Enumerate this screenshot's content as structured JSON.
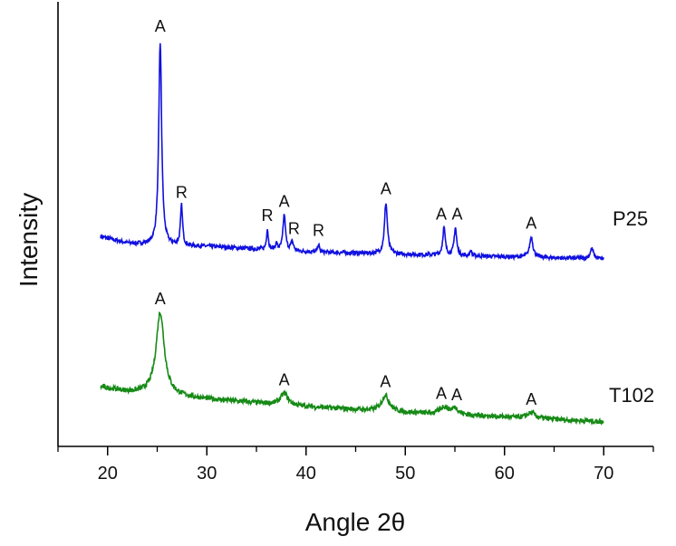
{
  "chart_data": {
    "type": "line",
    "title": "",
    "xlabel": "Angle 2θ",
    "ylabel": "Intensity",
    "xlim": [
      15,
      75
    ],
    "ylim": [
      0,
      100
    ],
    "x_ticks": [
      20,
      30,
      40,
      50,
      60,
      70
    ],
    "x_minor_ticks": [
      15,
      25,
      35,
      45,
      55,
      65,
      75
    ],
    "y_ticks": [],
    "grid": false,
    "series": [
      {
        "name": "P25",
        "color": "#1010e0",
        "x_range": [
          19.3,
          70
        ],
        "baseline": [
          [
            19.3,
            47
          ],
          [
            22,
            45.5
          ],
          [
            25,
            45
          ],
          [
            30,
            44.8
          ],
          [
            40,
            43.6
          ],
          [
            50,
            43
          ],
          [
            60,
            42.5
          ],
          [
            70,
            42
          ]
        ],
        "peaks": [
          {
            "x": 25.3,
            "height": 45.5,
            "fwhm": 0.35,
            "label": "A"
          },
          {
            "x": 27.45,
            "height": 9,
            "fwhm": 0.25,
            "label": "R"
          },
          {
            "x": 36.1,
            "height": 4.6,
            "fwhm": 0.22,
            "label": "R"
          },
          {
            "x": 37.0,
            "height": 1.3,
            "fwhm": 0.25,
            "label": ""
          },
          {
            "x": 37.8,
            "height": 8,
            "fwhm": 0.3,
            "label": "A"
          },
          {
            "x": 38.6,
            "height": 2,
            "fwhm": 0.3,
            "label": "R"
          },
          {
            "x": 41.25,
            "height": 1.8,
            "fwhm": 0.2,
            "label": "R"
          },
          {
            "x": 48.05,
            "height": 11.5,
            "fwhm": 0.35,
            "label": "A"
          },
          {
            "x": 53.9,
            "height": 6.2,
            "fwhm": 0.3,
            "label": "A"
          },
          {
            "x": 55.05,
            "height": 6.2,
            "fwhm": 0.3,
            "label": "A"
          },
          {
            "x": 56.6,
            "height": 1.2,
            "fwhm": 0.2,
            "label": ""
          },
          {
            "x": 62.7,
            "height": 4.6,
            "fwhm": 0.4,
            "label": "A"
          },
          {
            "x": 68.8,
            "height": 2.2,
            "fwhm": 0.4,
            "label": ""
          }
        ]
      },
      {
        "name": "T102",
        "color": "#168a16",
        "x_range": [
          19.3,
          70
        ],
        "baseline": [
          [
            19.3,
            13.3
          ],
          [
            22,
            12.2
          ],
          [
            30,
            10.6
          ],
          [
            40,
            8.9
          ],
          [
            50,
            7.6
          ],
          [
            60,
            6.6
          ],
          [
            70,
            5.5
          ]
        ],
        "peaks": [
          {
            "x": 25.3,
            "height": 18.5,
            "fwhm": 1.0,
            "label": "A"
          },
          {
            "x": 37.8,
            "height": 2.6,
            "fwhm": 0.9,
            "label": "A"
          },
          {
            "x": 48.0,
            "height": 3.6,
            "fwhm": 0.9,
            "label": "A"
          },
          {
            "x": 53.9,
            "height": 1.6,
            "fwhm": 0.9,
            "label": "A"
          },
          {
            "x": 55.0,
            "height": 1.4,
            "fwhm": 0.9,
            "label": "A"
          },
          {
            "x": 62.7,
            "height": 1.2,
            "fwhm": 1.0,
            "label": "A"
          }
        ]
      }
    ]
  }
}
